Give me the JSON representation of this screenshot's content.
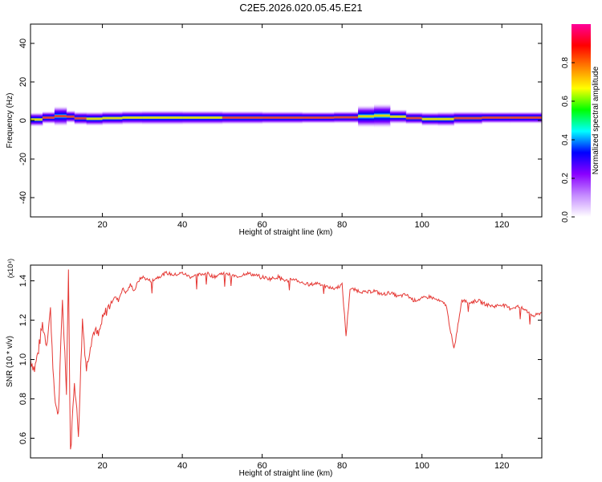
{
  "title": "C2E5.2026.020.05.45.E21",
  "colors": {
    "snr_line": "#e53935",
    "ridge_center": "#ff2a2a",
    "background": "#ffffff"
  },
  "chart_data": [
    {
      "type": "heatmap",
      "xlabel": "Height of straight line (km)",
      "ylabel": "Frequency (Hz)",
      "xlim": [
        2,
        130
      ],
      "ylim": [
        -50,
        50
      ],
      "x_ticks": [
        "20",
        "40",
        "60",
        "80",
        "100",
        "120"
      ],
      "x_tick_values": [
        20,
        40,
        60,
        80,
        100,
        120
      ],
      "y_ticks": [
        "40",
        "20",
        "0",
        "-20",
        "-40"
      ],
      "y_tick_values": [
        40,
        20,
        0,
        -20,
        -40
      ],
      "colorbar": {
        "label": "Normalized spectral amplitude",
        "range": [
          0,
          1
        ],
        "ticks": [
          "0.0",
          "0.2",
          "0.4",
          "0.6",
          "0.8"
        ],
        "tick_values": [
          0.0,
          0.2,
          0.4,
          0.6,
          0.8
        ],
        "colormap": [
          "#ffffff",
          "#c58cff",
          "#8a00ff",
          "#0000ff",
          "#00ffff",
          "#00ff00",
          "#ffff00",
          "#ff8000",
          "#ff0000",
          "#ff0099"
        ]
      },
      "ridge": [
        {
          "x": 2,
          "center": 0.0,
          "amp": 0.7
        },
        {
          "x": 5,
          "center": 1.0,
          "amp": 0.85
        },
        {
          "x": 8,
          "center": 2.0,
          "amp": 0.9
        },
        {
          "x": 11,
          "center": 2.5,
          "amp": 0.9
        },
        {
          "x": 13,
          "center": 1.5,
          "amp": 0.85
        },
        {
          "x": 16,
          "center": 0.8,
          "amp": 0.8
        },
        {
          "x": 20,
          "center": 1.0,
          "amp": 0.75
        },
        {
          "x": 25,
          "center": 1.5,
          "amp": 0.8
        },
        {
          "x": 30,
          "center": 1.5,
          "amp": 0.75
        },
        {
          "x": 40,
          "center": 1.5,
          "amp": 0.75
        },
        {
          "x": 50,
          "center": 1.5,
          "amp": 0.8
        },
        {
          "x": 60,
          "center": 1.5,
          "amp": 0.85
        },
        {
          "x": 70,
          "center": 1.5,
          "amp": 0.9
        },
        {
          "x": 78,
          "center": 1.5,
          "amp": 0.95
        },
        {
          "x": 84,
          "center": 1.8,
          "amp": 0.85
        },
        {
          "x": 88,
          "center": 2.5,
          "amp": 0.65
        },
        {
          "x": 92,
          "center": 2.5,
          "amp": 0.6
        },
        {
          "x": 96,
          "center": 1.5,
          "amp": 0.9
        },
        {
          "x": 100,
          "center": 1.0,
          "amp": 0.85
        },
        {
          "x": 104,
          "center": 0.5,
          "amp": 0.7
        },
        {
          "x": 108,
          "center": 1.0,
          "amp": 0.75
        },
        {
          "x": 115,
          "center": 1.5,
          "amp": 0.9
        },
        {
          "x": 122,
          "center": 1.5,
          "amp": 0.95
        },
        {
          "x": 130,
          "center": 1.5,
          "amp": 0.9
        }
      ]
    },
    {
      "type": "line",
      "xlabel": "Height of straight line (km)",
      "ylabel": "SNR (10 * v/v)",
      "y_multiplier": "(x10⁴)",
      "xlim": [
        2,
        130
      ],
      "ylim": [
        0.5,
        1.48
      ],
      "x_ticks": [
        "20",
        "40",
        "60",
        "80",
        "100",
        "120"
      ],
      "x_tick_values": [
        20,
        40,
        60,
        80,
        100,
        120
      ],
      "y_ticks": [
        "1.4",
        "1.2",
        "1.0",
        "0.8",
        "0.6"
      ],
      "y_tick_values": [
        1.4,
        1.2,
        1.0,
        0.8,
        0.6
      ],
      "series": [
        {
          "x": [
            2,
            3,
            4,
            5,
            6,
            7,
            8,
            9,
            10,
            11,
            11.5,
            12,
            13,
            14,
            15,
            16,
            17,
            18,
            19,
            20,
            21,
            22,
            23,
            24,
            25,
            26,
            27,
            28,
            29,
            30,
            32,
            34,
            36,
            38,
            40,
            42,
            44,
            46,
            48,
            50,
            52,
            54,
            56,
            58,
            60,
            62,
            64,
            66,
            68,
            70,
            72,
            74,
            76,
            78,
            80,
            81,
            82,
            84,
            86,
            88,
            90,
            92,
            94,
            96,
            98,
            100,
            102,
            104,
            106,
            108,
            110,
            112,
            114,
            116,
            118,
            120,
            122,
            124,
            126,
            128,
            130
          ],
          "y": [
            1.0,
            0.95,
            1.05,
            1.18,
            1.08,
            1.25,
            0.8,
            0.72,
            1.3,
            0.85,
            1.46,
            0.52,
            0.9,
            0.62,
            1.2,
            0.95,
            1.08,
            1.15,
            1.12,
            1.2,
            1.25,
            1.28,
            1.32,
            1.3,
            1.36,
            1.34,
            1.38,
            1.35,
            1.4,
            1.42,
            1.4,
            1.42,
            1.44,
            1.43,
            1.44,
            1.42,
            1.43,
            1.44,
            1.42,
            1.44,
            1.43,
            1.42,
            1.44,
            1.43,
            1.42,
            1.41,
            1.42,
            1.4,
            1.41,
            1.39,
            1.38,
            1.39,
            1.37,
            1.36,
            1.38,
            1.12,
            1.36,
            1.35,
            1.34,
            1.35,
            1.33,
            1.34,
            1.32,
            1.33,
            1.3,
            1.31,
            1.32,
            1.3,
            1.28,
            1.05,
            1.3,
            1.29,
            1.3,
            1.28,
            1.27,
            1.28,
            1.26,
            1.27,
            1.25,
            1.22,
            1.24
          ]
        }
      ]
    }
  ]
}
